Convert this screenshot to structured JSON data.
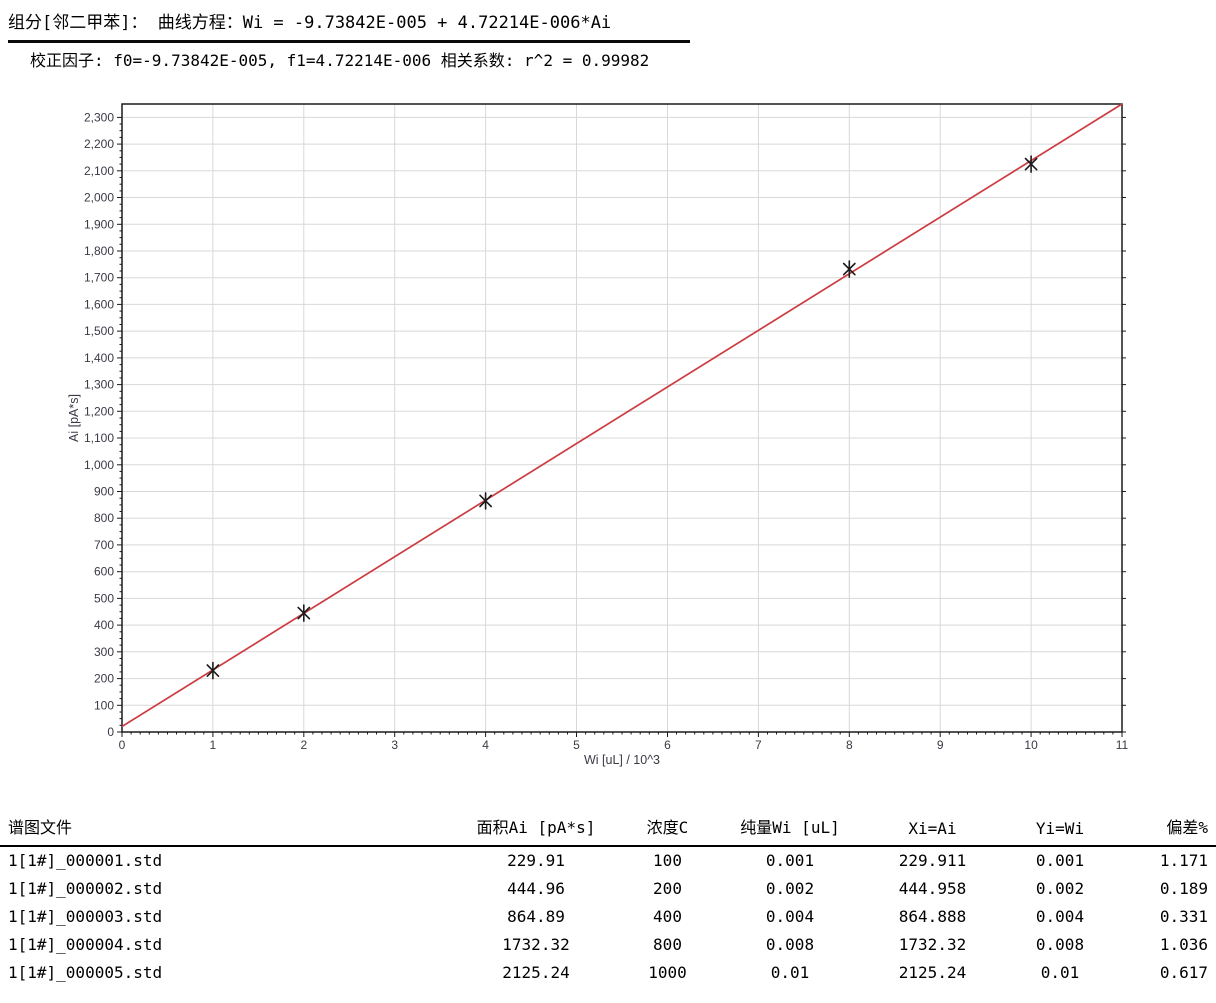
{
  "header": {
    "component_line": "组分[邻二甲苯]：  曲线方程：Wi = -9.73842E-005 + 4.72214E-006*Ai",
    "factor_line": "校正因子: f0=-9.73842E-005, f1=4.72214E-006   相关系数: r^2 = 0.99982"
  },
  "chart_data": {
    "type": "scatter",
    "title": "",
    "xlabel": "Wi [uL] / 10^3",
    "ylabel": "Ai [pA*s]",
    "xlim": [
      0,
      11
    ],
    "ylim": [
      0,
      2350
    ],
    "x_major_tick_step": 1,
    "x_minor_tick_step": 0.1,
    "y_major_tick_step": 100,
    "y_minor_tick_step": 25,
    "y_label_max": 2300,
    "grid": true,
    "legend": "none",
    "marker": "asterisk",
    "points": {
      "x": [
        1,
        2,
        4,
        8,
        10
      ],
      "y": [
        229.91,
        444.96,
        864.89,
        1732.32,
        2125.24
      ]
    },
    "fit_line": {
      "slope": 211.768,
      "intercept": 20.623
    },
    "colors": {
      "line": "#cc3b40",
      "marker": "#1c1c1c",
      "grid": "#d8d8d8",
      "frame": "#1a1a1a",
      "tick_label": "#3a3a46"
    }
  },
  "table": {
    "columns": [
      "谱图文件",
      "面积Ai [pA*s]",
      "浓度C",
      "纯量Wi [uL]",
      "Xi=Ai",
      "Yi=Wi",
      "偏差%"
    ],
    "rows": [
      [
        "1[1#]_000001.std",
        "229.91",
        "100",
        "0.001",
        "229.911",
        "0.001",
        "1.171"
      ],
      [
        "1[1#]_000002.std",
        "444.96",
        "200",
        "0.002",
        "444.958",
        "0.002",
        "0.189"
      ],
      [
        "1[1#]_000003.std",
        "864.89",
        "400",
        "0.004",
        "864.888",
        "0.004",
        "0.331"
      ],
      [
        "1[1#]_000004.std",
        "1732.32",
        "800",
        "0.008",
        "1732.32",
        "0.008",
        "1.036"
      ],
      [
        "1[1#]_000005.std",
        "2125.24",
        "1000",
        "0.01",
        "2125.24",
        "0.01",
        "0.617"
      ]
    ]
  }
}
